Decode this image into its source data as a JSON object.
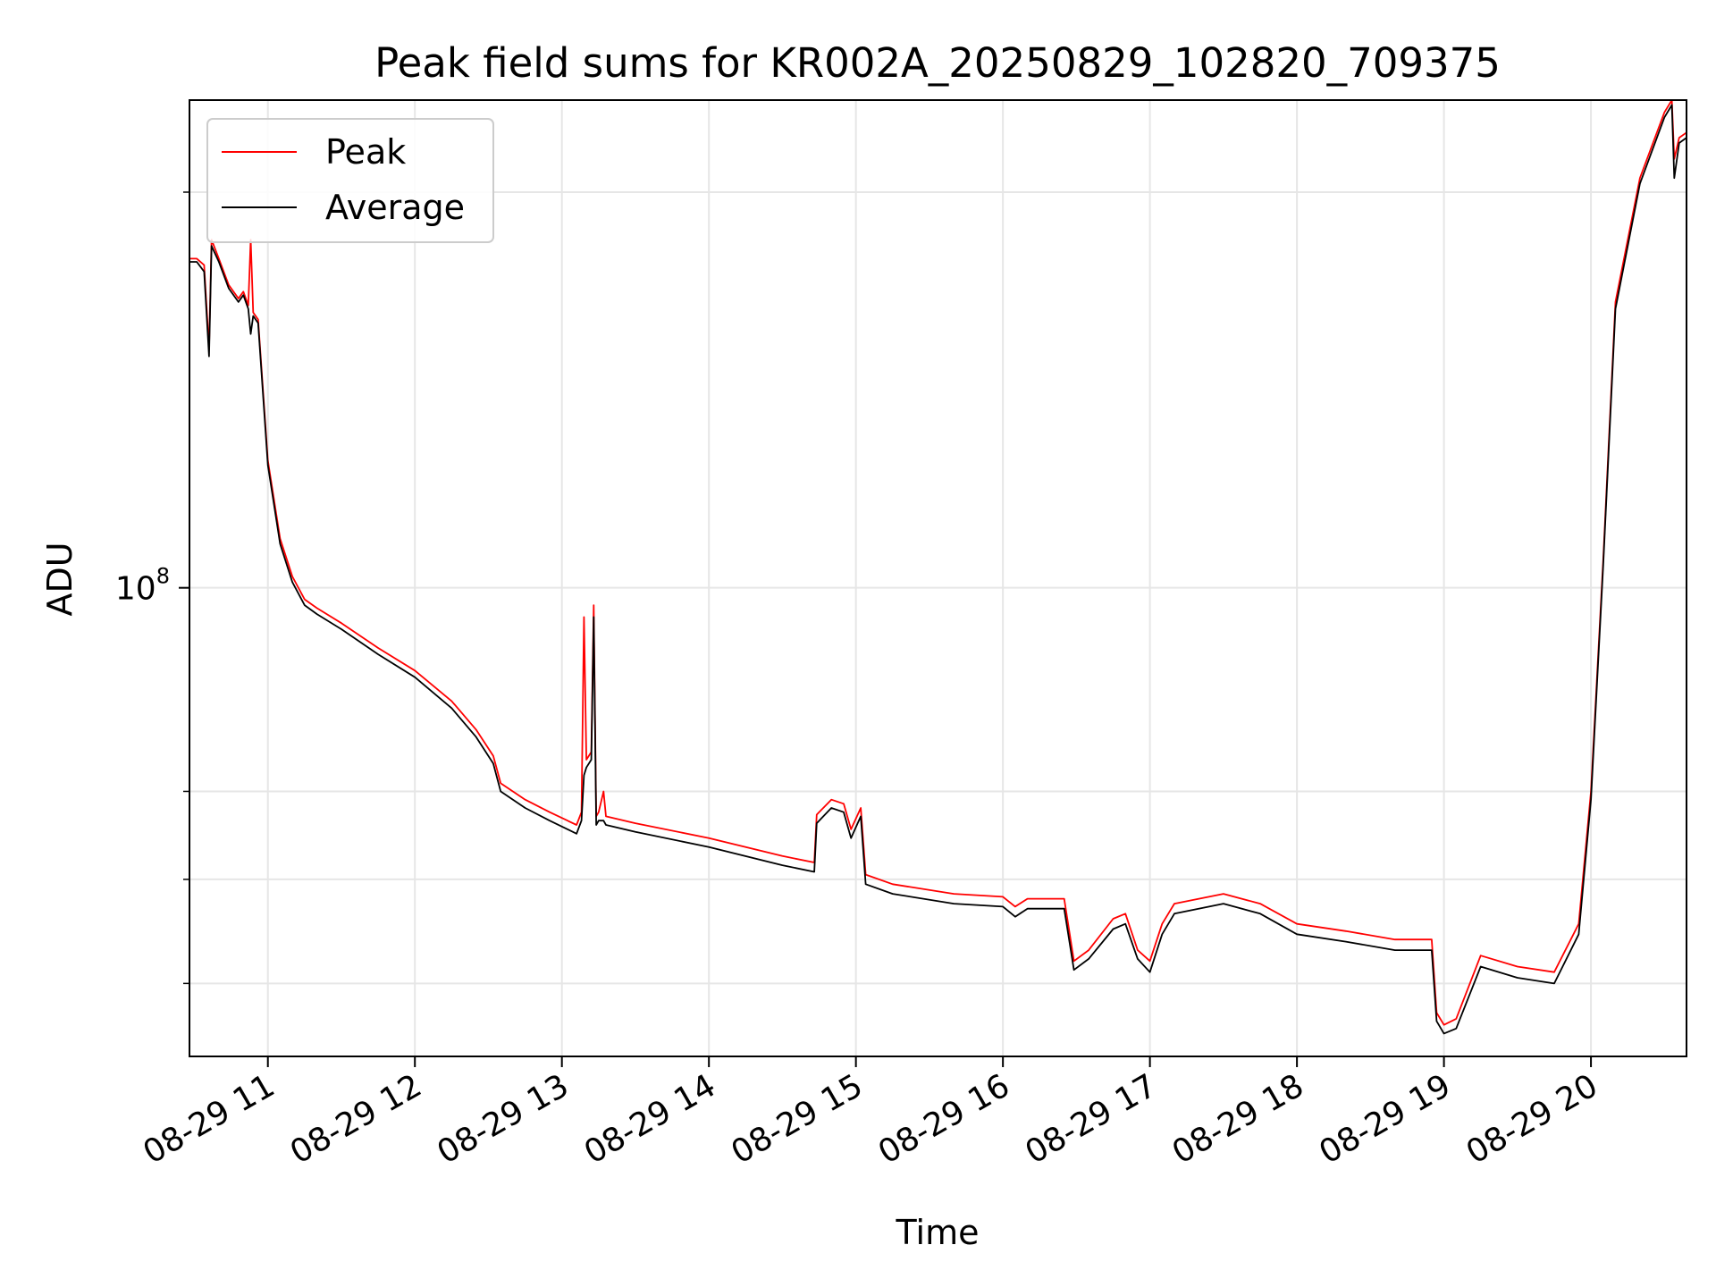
{
  "chart_data": {
    "type": "line",
    "title": "Peak field sums for KR002A_20250829_102820_709375",
    "xlabel": "Time",
    "ylabel": "ADU",
    "yscale": "log",
    "ylim": [
      44000000.0,
      235000000.0
    ],
    "xlim": [
      "2025-08-29 10:28",
      "2025-08-29 20:39"
    ],
    "x_ticks": [
      "08-29 11",
      "08-29 12",
      "08-29 13",
      "08-29 14",
      "08-29 15",
      "08-29 16",
      "08-29 17",
      "08-29 18",
      "08-29 19",
      "08-29 20"
    ],
    "y_ticks": [
      {
        "label": "10",
        "exponent": "8"
      }
    ],
    "grid": true,
    "legend_position": "upper-left",
    "colors": {
      "Peak": "#ff0000",
      "Average": "#000000"
    },
    "series": [
      {
        "name": "Peak",
        "points": [
          [
            "2025-08-29 10:28",
            178000000.0
          ],
          [
            "2025-08-29 10:31",
            178000000.0
          ],
          [
            "2025-08-29 10:34",
            176000000.0
          ],
          [
            "2025-08-29 10:36",
            152000000.0
          ],
          [
            "2025-08-29 10:37",
            184000000.0
          ],
          [
            "2025-08-29 10:40",
            178000000.0
          ],
          [
            "2025-08-29 10:44",
            170000000.0
          ],
          [
            "2025-08-29 10:48",
            166000000.0
          ],
          [
            "2025-08-29 10:50",
            168000000.0
          ],
          [
            "2025-08-29 10:52",
            164000000.0
          ],
          [
            "2025-08-29 10:53",
            184000000.0
          ],
          [
            "2025-08-29 10:54",
            162000000.0
          ],
          [
            "2025-08-29 10:56",
            160000000.0
          ],
          [
            "2025-08-29 11:00",
            125000000.0
          ],
          [
            "2025-08-29 11:05",
            109000000.0
          ],
          [
            "2025-08-29 11:10",
            102000000.0
          ],
          [
            "2025-08-29 11:15",
            98000000.0
          ],
          [
            "2025-08-29 11:20",
            96500000.0
          ],
          [
            "2025-08-29 11:30",
            94000000.0
          ],
          [
            "2025-08-29 11:45",
            90000000.0
          ],
          [
            "2025-08-29 12:00",
            86500000.0
          ],
          [
            "2025-08-29 12:15",
            82000000.0
          ],
          [
            "2025-08-29 12:25",
            78000000.0
          ],
          [
            "2025-08-29 12:32",
            74500000.0
          ],
          [
            "2025-08-29 12:35",
            71000000.0
          ],
          [
            "2025-08-29 12:45",
            69000000.0
          ],
          [
            "2025-08-29 12:55",
            67500000.0
          ],
          [
            "2025-08-29 13:06",
            66000000.0
          ],
          [
            "2025-08-29 13:08",
            67500000.0
          ],
          [
            "2025-08-29 13:09",
            95000000.0
          ],
          [
            "2025-08-29 13:10",
            74000000.0
          ],
          [
            "2025-08-29 13:12",
            75000000.0
          ],
          [
            "2025-08-29 13:13",
            97000000.0
          ],
          [
            "2025-08-29 13:14",
            67000000.0
          ],
          [
            "2025-08-29 13:15",
            67500000.0
          ],
          [
            "2025-08-29 13:17",
            70000000.0
          ],
          [
            "2025-08-29 13:18",
            67000000.0
          ],
          [
            "2025-08-29 13:30",
            66200000.0
          ],
          [
            "2025-08-29 14:00",
            64500000.0
          ],
          [
            "2025-08-29 14:30",
            62500000.0
          ],
          [
            "2025-08-29 14:43",
            61800000.0
          ],
          [
            "2025-08-29 14:44",
            67200000.0
          ],
          [
            "2025-08-29 14:50",
            69000000.0
          ],
          [
            "2025-08-29 14:55",
            68500000.0
          ],
          [
            "2025-08-29 14:58",
            65500000.0
          ],
          [
            "2025-08-29 15:02",
            68000000.0
          ],
          [
            "2025-08-29 15:04",
            60500000.0
          ],
          [
            "2025-08-29 15:15",
            59500000.0
          ],
          [
            "2025-08-29 15:40",
            58500000.0
          ],
          [
            "2025-08-29 16:00",
            58200000.0
          ],
          [
            "2025-08-29 16:05",
            57200000.0
          ],
          [
            "2025-08-29 16:10",
            58000000.0
          ],
          [
            "2025-08-29 16:25",
            58000000.0
          ],
          [
            "2025-08-29 16:29",
            52000000.0
          ],
          [
            "2025-08-29 16:35",
            53000000.0
          ],
          [
            "2025-08-29 16:45",
            56000000.0
          ],
          [
            "2025-08-29 16:50",
            56500000.0
          ],
          [
            "2025-08-29 16:55",
            53000000.0
          ],
          [
            "2025-08-29 17:00",
            52000000.0
          ],
          [
            "2025-08-29 17:05",
            55500000.0
          ],
          [
            "2025-08-29 17:10",
            57500000.0
          ],
          [
            "2025-08-29 17:30",
            58500000.0
          ],
          [
            "2025-08-29 17:45",
            57500000.0
          ],
          [
            "2025-08-29 18:00",
            55500000.0
          ],
          [
            "2025-08-29 18:20",
            54800000.0
          ],
          [
            "2025-08-29 18:40",
            54000000.0
          ],
          [
            "2025-08-29 18:55",
            54000000.0
          ],
          [
            "2025-08-29 18:57",
            47500000.0
          ],
          [
            "2025-08-29 19:00",
            46500000.0
          ],
          [
            "2025-08-29 19:05",
            47000000.0
          ],
          [
            "2025-08-29 19:15",
            52500000.0
          ],
          [
            "2025-08-29 19:30",
            51500000.0
          ],
          [
            "2025-08-29 19:45",
            51000000.0
          ],
          [
            "2025-08-29 19:55",
            55500000.0
          ],
          [
            "2025-08-29 20:00",
            70000000.0
          ],
          [
            "2025-08-29 20:05",
            105000000.0
          ],
          [
            "2025-08-29 20:10",
            165000000.0
          ],
          [
            "2025-08-29 20:20",
            205000000.0
          ],
          [
            "2025-08-29 20:30",
            230000000.0
          ],
          [
            "2025-08-29 20:33",
            235000000.0
          ],
          [
            "2025-08-29 20:34",
            212000000.0
          ],
          [
            "2025-08-29 20:36",
            220000000.0
          ],
          [
            "2025-08-29 20:39",
            222000000.0
          ]
        ]
      },
      {
        "name": "Average",
        "points": [
          [
            "2025-08-29 10:28",
            177000000.0
          ],
          [
            "2025-08-29 10:31",
            177000000.0
          ],
          [
            "2025-08-29 10:34",
            174000000.0
          ],
          [
            "2025-08-29 10:36",
            150000000.0
          ],
          [
            "2025-08-29 10:37",
            182000000.0
          ],
          [
            "2025-08-29 10:40",
            177000000.0
          ],
          [
            "2025-08-29 10:44",
            169000000.0
          ],
          [
            "2025-08-29 10:48",
            165000000.0
          ],
          [
            "2025-08-29 10:50",
            167000000.0
          ],
          [
            "2025-08-29 10:52",
            163000000.0
          ],
          [
            "2025-08-29 10:53",
            156000000.0
          ],
          [
            "2025-08-29 10:54",
            161000000.0
          ],
          [
            "2025-08-29 10:56",
            159000000.0
          ],
          [
            "2025-08-29 11:00",
            124000000.0
          ],
          [
            "2025-08-29 11:05",
            108000000.0
          ],
          [
            "2025-08-29 11:10",
            101000000.0
          ],
          [
            "2025-08-29 11:15",
            97000000.0
          ],
          [
            "2025-08-29 11:20",
            95500000.0
          ],
          [
            "2025-08-29 11:30",
            93000000.0
          ],
          [
            "2025-08-29 11:45",
            89000000.0
          ],
          [
            "2025-08-29 12:00",
            85500000.0
          ],
          [
            "2025-08-29 12:15",
            81000000.0
          ],
          [
            "2025-08-29 12:25",
            77000000.0
          ],
          [
            "2025-08-29 12:32",
            73500000.0
          ],
          [
            "2025-08-29 12:35",
            70000000.0
          ],
          [
            "2025-08-29 12:45",
            68000000.0
          ],
          [
            "2025-08-29 12:55",
            66500000.0
          ],
          [
            "2025-08-29 13:06",
            65000000.0
          ],
          [
            "2025-08-29 13:08",
            66500000.0
          ],
          [
            "2025-08-29 13:09",
            72000000.0
          ],
          [
            "2025-08-29 13:10",
            73000000.0
          ],
          [
            "2025-08-29 13:12",
            74000000.0
          ],
          [
            "2025-08-29 13:13",
            95000000.0
          ],
          [
            "2025-08-29 13:14",
            66000000.0
          ],
          [
            "2025-08-29 13:15",
            66500000.0
          ],
          [
            "2025-08-29 13:17",
            66500000.0
          ],
          [
            "2025-08-29 13:18",
            66000000.0
          ],
          [
            "2025-08-29 13:30",
            65200000.0
          ],
          [
            "2025-08-29 14:00",
            63500000.0
          ],
          [
            "2025-08-29 14:30",
            61500000.0
          ],
          [
            "2025-08-29 14:43",
            60800000.0
          ],
          [
            "2025-08-29 14:44",
            66200000.0
          ],
          [
            "2025-08-29 14:50",
            68000000.0
          ],
          [
            "2025-08-29 14:55",
            67500000.0
          ],
          [
            "2025-08-29 14:58",
            64500000.0
          ],
          [
            "2025-08-29 15:02",
            67000000.0
          ],
          [
            "2025-08-29 15:04",
            59500000.0
          ],
          [
            "2025-08-29 15:15",
            58500000.0
          ],
          [
            "2025-08-29 15:40",
            57500000.0
          ],
          [
            "2025-08-29 16:00",
            57200000.0
          ],
          [
            "2025-08-29 16:05",
            56200000.0
          ],
          [
            "2025-08-29 16:10",
            57000000.0
          ],
          [
            "2025-08-29 16:25",
            57000000.0
          ],
          [
            "2025-08-29 16:29",
            51200000.0
          ],
          [
            "2025-08-29 16:35",
            52200000.0
          ],
          [
            "2025-08-29 16:45",
            55000000.0
          ],
          [
            "2025-08-29 16:50",
            55500000.0
          ],
          [
            "2025-08-29 16:55",
            52200000.0
          ],
          [
            "2025-08-29 17:00",
            51000000.0
          ],
          [
            "2025-08-29 17:05",
            54500000.0
          ],
          [
            "2025-08-29 17:10",
            56500000.0
          ],
          [
            "2025-08-29 17:30",
            57500000.0
          ],
          [
            "2025-08-29 17:45",
            56500000.0
          ],
          [
            "2025-08-29 18:00",
            54500000.0
          ],
          [
            "2025-08-29 18:20",
            53800000.0
          ],
          [
            "2025-08-29 18:40",
            53000000.0
          ],
          [
            "2025-08-29 18:55",
            53000000.0
          ],
          [
            "2025-08-29 18:57",
            46800000.0
          ],
          [
            "2025-08-29 19:00",
            45800000.0
          ],
          [
            "2025-08-29 19:05",
            46200000.0
          ],
          [
            "2025-08-29 19:15",
            51500000.0
          ],
          [
            "2025-08-29 19:30",
            50500000.0
          ],
          [
            "2025-08-29 19:45",
            50000000.0
          ],
          [
            "2025-08-29 19:55",
            54500000.0
          ],
          [
            "2025-08-29 20:00",
            69000000.0
          ],
          [
            "2025-08-29 20:05",
            104000000.0
          ],
          [
            "2025-08-29 20:10",
            163000000.0
          ],
          [
            "2025-08-29 20:20",
            203000000.0
          ],
          [
            "2025-08-29 20:30",
            228000000.0
          ],
          [
            "2025-08-29 20:33",
            233000000.0
          ],
          [
            "2025-08-29 20:34",
            205000000.0
          ],
          [
            "2025-08-29 20:36",
            218000000.0
          ],
          [
            "2025-08-29 20:39",
            220000000.0
          ]
        ]
      }
    ]
  }
}
